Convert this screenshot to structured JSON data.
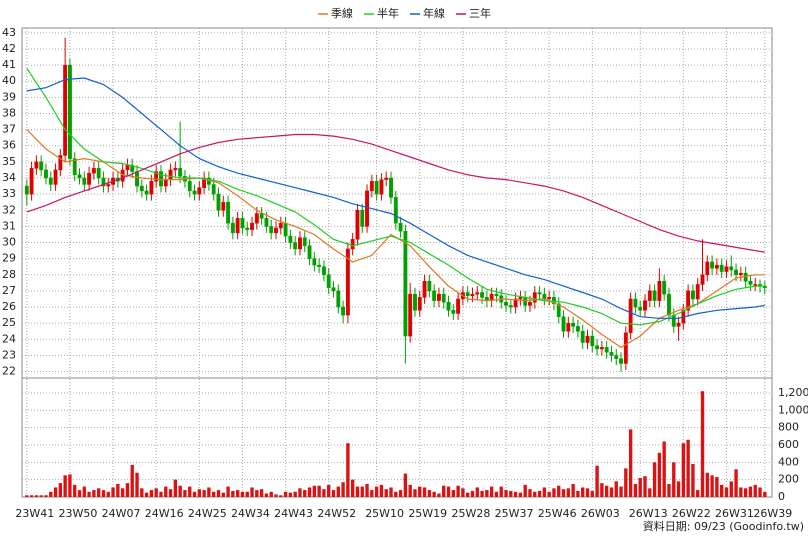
{
  "chart_data": {
    "type": "candlestick",
    "legend": "top",
    "grid": true,
    "source": "資料日期: 09/23  (Goodinfo.tw)",
    "xlim": [
      -1,
      155.5
    ],
    "xticks": [
      {
        "value": 0,
        "label": "23W41"
      },
      {
        "value": 9,
        "label": "23W50"
      },
      {
        "value": 18,
        "label": "24W07"
      },
      {
        "value": 27,
        "label": "24W16"
      },
      {
        "value": 36,
        "label": "24W25"
      },
      {
        "value": 45,
        "label": "24W34"
      },
      {
        "value": 54,
        "label": "24W43"
      },
      {
        "value": 63,
        "label": "24W52"
      },
      {
        "value": 73,
        "label": "25W10"
      },
      {
        "value": 82,
        "label": "25W19"
      },
      {
        "value": 91,
        "label": "25W28"
      },
      {
        "value": 100,
        "label": "25W37"
      },
      {
        "value": 109,
        "label": "25W46"
      },
      {
        "value": 118,
        "label": "26W03"
      },
      {
        "value": 128,
        "label": "26W13"
      },
      {
        "value": 137,
        "label": "26W22"
      },
      {
        "value": 146,
        "label": "26W31"
      },
      {
        "value": 154,
        "label": "26W39"
      }
    ],
    "ylim": [
      21.6,
      43.3
    ],
    "yticks": [
      22,
      23,
      24,
      25,
      26,
      27,
      28,
      29,
      30,
      31,
      32,
      33,
      34,
      35,
      36,
      37,
      38,
      39,
      40,
      41,
      42,
      43
    ],
    "up_color": "#e00000",
    "down_color": "#00a000",
    "open": [
      33.5,
      33.0,
      34.6,
      35.0,
      34.5,
      34.0,
      33.6,
      34.5,
      35.4,
      41.0,
      35.2,
      34.2,
      34.0,
      33.6,
      34.3,
      34.6,
      34.0,
      33.5,
      33.6,
      34.0,
      33.8,
      34.5,
      34.8,
      34.4,
      33.5,
      33.2,
      33.0,
      33.8,
      34.4,
      33.5,
      33.9,
      34.5,
      34.6,
      34.1,
      33.8,
      33.2,
      33.0,
      33.4,
      34.0,
      33.6,
      33.0,
      32.0,
      32.5,
      31.2,
      30.6,
      31.5,
      30.9,
      30.8,
      31.2,
      31.8,
      31.5,
      31.0,
      30.6,
      30.9,
      31.2,
      30.4,
      30.0,
      29.6,
      30.3,
      29.8,
      29.0,
      28.6,
      28.5,
      28.0,
      27.2,
      27.0,
      26.0,
      25.5,
      29.6,
      30.2,
      32.0,
      31.0,
      33.2,
      33.8,
      33.0,
      33.9,
      34.0,
      32.8,
      31.2,
      30.7,
      24.2,
      26.8,
      25.8,
      26.6,
      27.6,
      27.0,
      26.4,
      26.8,
      26.3,
      25.8,
      25.6,
      26.5,
      26.9,
      26.7,
      26.8,
      26.9,
      26.6,
      26.4,
      26.8,
      26.7,
      26.3,
      26.1,
      26.0,
      26.5,
      26.6,
      26.1,
      26.3,
      26.9,
      26.8,
      26.5,
      26.6,
      26.2,
      25.4,
      24.5,
      25.0,
      24.8,
      24.5,
      23.8,
      24.2,
      23.6,
      23.4,
      23.5,
      23.2,
      23.0,
      22.8,
      22.5,
      24.4,
      26.5,
      26.0,
      25.8,
      26.4,
      27.0,
      26.4,
      27.6,
      26.8,
      25.5,
      24.8,
      25.0,
      25.8,
      27.0,
      26.5,
      27.4,
      28.0,
      28.8,
      28.4,
      28.6,
      28.2,
      28.5,
      28.3,
      28.0,
      28.1,
      27.6,
      27.4,
      27.4,
      27.3
    ],
    "high": [
      33.9,
      35.0,
      35.4,
      35.4,
      34.9,
      34.4,
      34.9,
      35.8,
      42.7,
      41.4,
      35.6,
      34.6,
      34.4,
      34.7,
      35.0,
      35.0,
      34.4,
      34.0,
      34.4,
      34.4,
      34.9,
      35.2,
      35.2,
      34.8,
      33.9,
      33.6,
      34.2,
      34.8,
      34.8,
      34.3,
      34.9,
      35.0,
      37.5,
      34.5,
      34.2,
      33.6,
      33.8,
      34.4,
      34.4,
      34.0,
      33.4,
      32.9,
      32.9,
      31.6,
      31.9,
      31.9,
      31.3,
      31.6,
      32.2,
      32.2,
      31.9,
      31.4,
      31.3,
      31.6,
      31.6,
      30.8,
      30.4,
      30.7,
      30.7,
      30.2,
      29.4,
      29.0,
      28.9,
      28.4,
      27.6,
      27.4,
      26.4,
      30.0,
      30.6,
      32.4,
      32.4,
      33.6,
      34.2,
      34.2,
      34.3,
      34.4,
      34.4,
      33.2,
      31.6,
      31.1,
      27.5,
      27.2,
      27.0,
      28.0,
      28.0,
      27.4,
      27.2,
      27.2,
      26.7,
      26.2,
      26.9,
      27.3,
      27.3,
      27.2,
      27.3,
      27.3,
      27.0,
      27.2,
      27.2,
      27.1,
      26.7,
      26.5,
      26.9,
      27.0,
      27.0,
      26.7,
      27.3,
      27.3,
      27.2,
      27.0,
      27.0,
      26.6,
      25.8,
      25.4,
      25.4,
      25.2,
      24.9,
      24.6,
      24.6,
      24.0,
      23.9,
      23.9,
      23.6,
      23.4,
      23.2,
      24.8,
      26.9,
      26.9,
      26.4,
      26.8,
      27.4,
      27.4,
      28.4,
      28.0,
      27.2,
      25.9,
      25.4,
      26.2,
      27.4,
      27.4,
      27.8,
      30.2,
      29.2,
      29.2,
      29.0,
      29.0,
      28.9,
      29.2,
      28.7,
      28.5,
      28.5,
      28.0,
      27.8,
      27.7,
      27.6
    ],
    "low": [
      32.3,
      32.6,
      34.2,
      34.1,
      33.6,
      33.2,
      33.2,
      34.1,
      35.0,
      34.8,
      33.8,
      33.6,
      33.2,
      33.2,
      33.9,
      33.6,
      33.1,
      33.1,
      33.2,
      33.4,
      33.4,
      34.1,
      34.0,
      33.1,
      32.8,
      32.6,
      32.6,
      33.4,
      33.1,
      33.1,
      33.5,
      34.1,
      33.7,
      33.4,
      32.8,
      32.6,
      32.6,
      33.0,
      33.2,
      32.6,
      31.6,
      31.6,
      30.8,
      30.2,
      30.2,
      30.5,
      30.4,
      30.4,
      30.8,
      31.1,
      30.6,
      30.2,
      30.2,
      30.5,
      30.0,
      29.6,
      29.2,
      29.2,
      29.4,
      28.6,
      28.2,
      28.1,
      27.6,
      26.8,
      26.6,
      25.6,
      25.0,
      25.0,
      29.2,
      29.8,
      30.6,
      30.6,
      32.8,
      32.6,
      32.6,
      33.5,
      32.4,
      30.8,
      30.3,
      22.5,
      23.8,
      25.4,
      25.4,
      26.2,
      26.6,
      26.0,
      26.0,
      25.9,
      25.4,
      25.2,
      25.2,
      26.1,
      26.3,
      26.3,
      26.4,
      26.2,
      26.0,
      26.0,
      26.3,
      25.9,
      25.7,
      25.6,
      25.6,
      26.1,
      25.7,
      25.7,
      25.9,
      26.4,
      26.1,
      26.1,
      25.8,
      25.0,
      24.1,
      24.1,
      24.4,
      24.1,
      23.4,
      23.4,
      23.2,
      23.0,
      23.0,
      22.8,
      22.6,
      22.4,
      22.0,
      22.1,
      24.0,
      25.6,
      25.4,
      25.4,
      26.0,
      26.0,
      26.0,
      26.4,
      25.1,
      24.4,
      23.9,
      24.6,
      25.4,
      26.1,
      26.1,
      27.0,
      27.6,
      28.0,
      28.0,
      27.8,
      27.8,
      27.9,
      27.6,
      27.6,
      27.2,
      27.0,
      27.0,
      26.9,
      26.8
    ],
    "close": [
      33.0,
      34.6,
      35.0,
      34.5,
      34.0,
      33.6,
      34.5,
      35.4,
      41.0,
      35.2,
      34.2,
      34.0,
      33.6,
      34.3,
      34.6,
      34.0,
      33.5,
      33.6,
      34.0,
      33.8,
      34.5,
      34.8,
      34.4,
      33.5,
      33.2,
      33.0,
      33.8,
      34.4,
      33.5,
      33.9,
      34.5,
      34.6,
      34.1,
      33.8,
      33.2,
      33.0,
      33.4,
      34.0,
      33.6,
      33.0,
      32.0,
      32.5,
      31.2,
      30.6,
      31.5,
      30.9,
      30.8,
      31.2,
      31.8,
      31.5,
      31.0,
      30.6,
      30.9,
      31.2,
      30.4,
      30.0,
      29.6,
      30.3,
      29.8,
      29.0,
      28.6,
      28.5,
      28.0,
      27.2,
      27.0,
      26.0,
      25.5,
      29.6,
      30.2,
      32.0,
      31.0,
      33.2,
      33.8,
      33.0,
      33.9,
      34.0,
      32.8,
      31.2,
      30.7,
      24.2,
      26.8,
      25.8,
      26.6,
      27.6,
      27.0,
      26.4,
      26.8,
      26.3,
      25.8,
      25.6,
      26.5,
      26.9,
      26.7,
      26.8,
      26.9,
      26.6,
      26.4,
      26.8,
      26.7,
      26.3,
      26.1,
      26.0,
      26.5,
      26.6,
      26.1,
      26.3,
      26.9,
      26.8,
      26.5,
      26.6,
      26.2,
      25.4,
      24.5,
      25.0,
      24.8,
      24.5,
      23.8,
      24.2,
      23.6,
      23.4,
      23.5,
      23.2,
      23.0,
      22.8,
      22.5,
      24.4,
      26.5,
      26.0,
      25.8,
      26.4,
      27.0,
      26.4,
      27.6,
      26.8,
      25.5,
      24.8,
      25.0,
      25.8,
      27.0,
      26.5,
      27.4,
      28.0,
      28.8,
      28.4,
      28.6,
      28.2,
      28.5,
      28.3,
      28.0,
      28.1,
      27.6,
      27.4,
      27.4,
      27.3,
      27.2
    ],
    "volume": [
      20,
      20,
      20,
      20,
      20,
      60,
      110,
      160,
      250,
      260,
      140,
      80,
      120,
      60,
      80,
      100,
      80,
      60,
      110,
      150,
      100,
      160,
      370,
      280,
      100,
      50,
      80,
      100,
      60,
      120,
      90,
      200,
      130,
      80,
      120,
      60,
      90,
      80,
      110,
      60,
      80,
      50,
      120,
      70,
      80,
      60,
      60,
      110,
      80,
      90,
      40,
      60,
      30,
      20,
      60,
      50,
      60,
      100,
      80,
      110,
      130,
      130,
      90,
      140,
      80,
      120,
      170,
      620,
      200,
      120,
      120,
      150,
      80,
      120,
      140,
      90,
      110,
      60,
      80,
      270,
      140,
      90,
      120,
      110,
      80,
      60,
      40,
      130,
      120,
      80,
      130,
      100,
      50,
      70,
      110,
      70,
      80,
      120,
      60,
      120,
      80,
      70,
      60,
      50,
      140,
      90,
      60,
      70,
      110,
      60,
      100,
      130,
      90,
      100,
      150,
      70,
      110,
      100,
      70,
      360,
      160,
      130,
      110,
      180,
      120,
      330,
      780,
      150,
      220,
      240,
      100,
      400,
      510,
      640,
      150,
      400,
      180,
      620,
      660,
      380,
      80,
      1220,
      280,
      250,
      230,
      140,
      110,
      180,
      320,
      110,
      100,
      120,
      140,
      110,
      60
    ],
    "volume_color": "#dd1111",
    "y2lim": [
      0,
      1280
    ],
    "y2ticks": [
      0,
      200,
      400,
      600,
      800,
      {
        "value": 1000,
        "label": "1,000"
      },
      {
        "value": 1200,
        "label": "1,200"
      }
    ],
    "series": [
      {
        "name": "季線",
        "color": "#e07820",
        "x": [
          0,
          4,
          8,
          12,
          16,
          20,
          24,
          28,
          32,
          36,
          40,
          44,
          48,
          52,
          56,
          60,
          64,
          68,
          72,
          76,
          80,
          84,
          88,
          92,
          96,
          100,
          104,
          108,
          112,
          116,
          120,
          124,
          128,
          132,
          136,
          140,
          144,
          148,
          152,
          154
        ],
        "values": [
          37.0,
          35.8,
          35.0,
          35.2,
          35.0,
          34.2,
          34.0,
          33.9,
          33.9,
          34.0,
          33.7,
          32.9,
          32.0,
          31.4,
          31.0,
          30.5,
          29.6,
          28.8,
          29.2,
          30.5,
          29.8,
          28.5,
          27.3,
          26.5,
          26.4,
          26.5,
          26.4,
          26.5,
          26.0,
          25.2,
          24.3,
          23.5,
          24.2,
          25.3,
          25.8,
          26.2,
          27.0,
          27.8,
          28.0,
          28.0
        ]
      },
      {
        "name": "半年",
        "color": "#22cc22",
        "x": [
          0,
          4,
          8,
          12,
          16,
          20,
          24,
          28,
          32,
          36,
          40,
          44,
          48,
          52,
          56,
          60,
          64,
          68,
          72,
          76,
          80,
          84,
          88,
          92,
          96,
          100,
          104,
          108,
          112,
          116,
          120,
          124,
          128,
          132,
          136,
          140,
          144,
          148,
          152,
          154
        ],
        "values": [
          40.8,
          39.0,
          37.0,
          35.8,
          35.0,
          34.9,
          34.6,
          34.2,
          34.0,
          34.0,
          33.8,
          33.3,
          32.9,
          32.4,
          31.9,
          31.1,
          30.2,
          29.8,
          30.1,
          30.4,
          30.0,
          29.3,
          28.6,
          27.8,
          27.1,
          26.8,
          26.6,
          26.4,
          26.3,
          26.0,
          25.6,
          25.0,
          24.9,
          25.1,
          25.6,
          26.2,
          26.7,
          27.1,
          27.3,
          27.3
        ]
      },
      {
        "name": "年線",
        "color": "#1060d0",
        "x": [
          0,
          4,
          8,
          12,
          16,
          20,
          24,
          28,
          32,
          36,
          40,
          44,
          48,
          52,
          56,
          60,
          64,
          68,
          72,
          76,
          80,
          84,
          88,
          92,
          96,
          100,
          104,
          108,
          112,
          116,
          120,
          124,
          128,
          132,
          136,
          140,
          144,
          148,
          152,
          154
        ],
        "values": [
          39.4,
          39.6,
          40.1,
          40.2,
          39.8,
          39.0,
          38.0,
          37.0,
          36.0,
          35.2,
          34.7,
          34.3,
          34.0,
          33.7,
          33.4,
          33.1,
          32.8,
          32.4,
          32.1,
          31.8,
          31.2,
          30.5,
          29.8,
          29.2,
          28.8,
          28.4,
          28.0,
          27.7,
          27.3,
          26.9,
          26.5,
          25.9,
          25.4,
          25.3,
          25.3,
          25.6,
          25.8,
          25.9,
          26.0,
          26.1
        ]
      },
      {
        "name": "三年",
        "color": "#cc1166",
        "x": [
          0,
          4,
          8,
          12,
          16,
          20,
          24,
          28,
          32,
          36,
          40,
          44,
          48,
          52,
          56,
          60,
          64,
          68,
          72,
          76,
          80,
          84,
          88,
          92,
          96,
          100,
          104,
          108,
          112,
          116,
          120,
          124,
          128,
          132,
          136,
          140,
          144,
          148,
          152,
          154
        ],
        "values": [
          31.9,
          32.3,
          32.8,
          33.2,
          33.6,
          34.0,
          34.5,
          35.0,
          35.5,
          35.9,
          36.2,
          36.4,
          36.5,
          36.6,
          36.7,
          36.7,
          36.6,
          36.4,
          36.1,
          35.7,
          35.3,
          34.9,
          34.5,
          34.2,
          34.0,
          33.9,
          33.7,
          33.5,
          33.2,
          32.8,
          32.3,
          31.8,
          31.3,
          30.8,
          30.4,
          30.1,
          29.9,
          29.7,
          29.5,
          29.4
        ]
      }
    ]
  }
}
